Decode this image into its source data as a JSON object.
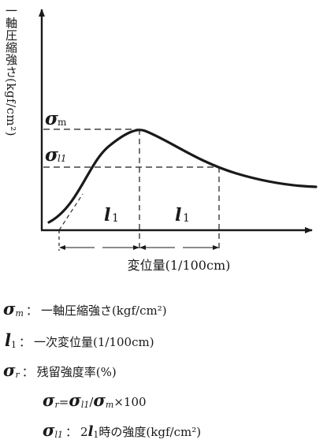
{
  "figure": {
    "y_axis_label": "一軸圧縮強さ(kgf/cm²)",
    "x_axis_label": "変位量(1/100cm)",
    "sigma_m_label": "σ",
    "sigma_m_sub": "m",
    "sigma_l1_label": "σ",
    "sigma_l1_sub": "l1",
    "l1_left": "l",
    "l1_left_sub": "1",
    "l1_right": "l",
    "l1_right_sub": "1"
  },
  "legend": {
    "row1": {
      "symbol": "σ",
      "sub": "m",
      "sep": "：",
      "text": "一軸圧縮強さ(kgf/cm²)"
    },
    "row2": {
      "symbol": "l",
      "sub": "1",
      "sep": "：",
      "text": "一次変位量(1/100cm)"
    },
    "row3": {
      "symbol": "σ",
      "sub": "r",
      "sep": "：",
      "text": "残留強度率(%)"
    },
    "row4": {
      "s1": "σ",
      "s1sub": "r",
      "eq": "=",
      "s2": "σ",
      "s2sub": "l1",
      "slash": "/",
      "s3": "σ",
      "s3sub": "m",
      "tail": "×100"
    },
    "row5": {
      "symbol": "σ",
      "sub": "l1",
      "sep": "：",
      "pre": "2",
      "bl": "l",
      "blsub": "1",
      "text": "時の強度(kgf/cm²)"
    }
  }
}
